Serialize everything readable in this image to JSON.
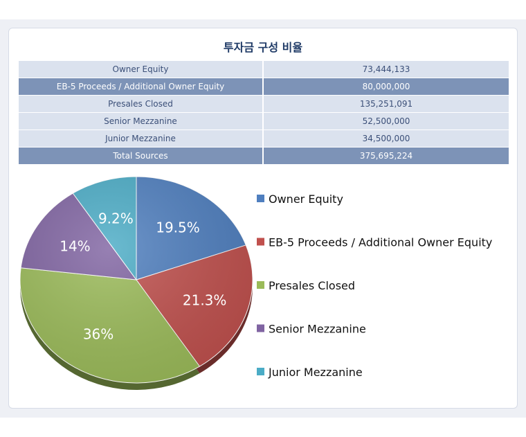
{
  "title": "투자금 구성 비율",
  "table": {
    "rows": [
      {
        "label": "Owner Equity",
        "value": "73,444,133"
      },
      {
        "label": "EB-5 Proceeds / Additional Owner Equity",
        "value": "80,000,000"
      },
      {
        "label": "Presales Closed",
        "value": "135,251,091"
      },
      {
        "label": "Senior Mezzanine",
        "value": "52,500,000"
      },
      {
        "label": "Junior Mezzanine",
        "value": "34,500,000"
      },
      {
        "label": "Total Sources",
        "value": "375,695,224"
      }
    ]
  },
  "chart_data": {
    "type": "pie",
    "title": "",
    "legend_position": "right",
    "slices": [
      {
        "name": "Owner Equity",
        "value": 73444133,
        "label": "19.5%",
        "color": "#4f7fbf"
      },
      {
        "name": "EB-5 Proceeds / Additional Owner Equity",
        "value": 80000000,
        "label": "21.3%",
        "color": "#c0504d"
      },
      {
        "name": "Presales Closed",
        "value": 135251091,
        "label": "36%",
        "color": "#9bbb59"
      },
      {
        "name": "Senior Mezzanine",
        "value": 52500000,
        "label": "14%",
        "color": "#8064a2"
      },
      {
        "name": "Junior Mezzanine",
        "value": 34500000,
        "label": "9.2%",
        "color": "#4bacc6"
      }
    ]
  }
}
